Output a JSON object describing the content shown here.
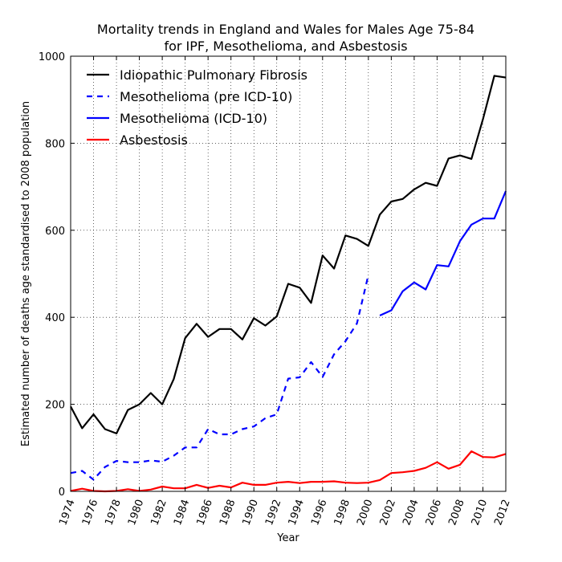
{
  "chart_data": {
    "type": "line",
    "title_line1": "Mortality trends in England and Wales for Males Age 75-84",
    "title_line2": "for IPF, Mesothelioma, and Asbestosis",
    "xlabel": "Year",
    "ylabel": "Estimated number of deaths age standardised to 2008 population",
    "xlim": [
      1974,
      2012
    ],
    "ylim": [
      0,
      1000
    ],
    "xticks": [
      "1974",
      "1976",
      "1978",
      "1980",
      "1982",
      "1984",
      "1986",
      "1988",
      "1990",
      "1992",
      "1994",
      "1996",
      "1998",
      "2000",
      "2002",
      "2004",
      "2006",
      "2008",
      "2010",
      "2012"
    ],
    "yticks": [
      "0",
      "200",
      "400",
      "600",
      "800",
      "1000"
    ],
    "grid": true,
    "legend_position": "upper-left",
    "series": [
      {
        "name": "Idiopathic Pulmonary Fibrosis",
        "color": "#000000",
        "dash": "solid",
        "x": [
          1974,
          1975,
          1976,
          1977,
          1978,
          1979,
          1980,
          1981,
          1982,
          1983,
          1984,
          1985,
          1986,
          1987,
          1988,
          1989,
          1990,
          1991,
          1992,
          1993,
          1994,
          1995,
          1996,
          1997,
          1998,
          1999,
          2000,
          2001,
          2002,
          2003,
          2004,
          2005,
          2006,
          2007,
          2008,
          2009,
          2010,
          2011,
          2012
        ],
        "y": [
          195,
          145,
          177,
          143,
          133,
          187,
          200,
          226,
          200,
          258,
          352,
          385,
          355,
          373,
          373,
          349,
          398,
          381,
          402,
          477,
          468,
          433,
          542,
          512,
          588,
          580,
          564,
          636,
          666,
          672,
          694,
          709,
          702,
          765,
          772,
          764,
          855,
          955,
          951
        ]
      },
      {
        "name": "Mesothelioma (pre ICD-10)",
        "color": "#0000ff",
        "dash": "dashed",
        "x": [
          1974,
          1975,
          1976,
          1977,
          1978,
          1979,
          1980,
          1981,
          1982,
          1983,
          1984,
          1985,
          1986,
          1987,
          1988,
          1989,
          1990,
          1991,
          1992,
          1993,
          1994,
          1995,
          1996,
          1997,
          1998,
          1999,
          2000
        ],
        "y": [
          42,
          47,
          27,
          56,
          70,
          67,
          67,
          71,
          68,
          82,
          101,
          101,
          143,
          131,
          131,
          143,
          149,
          168,
          177,
          259,
          262,
          297,
          263,
          315,
          345,
          386,
          497
        ]
      },
      {
        "name": "Mesothelioma (ICD-10)",
        "color": "#0000ff",
        "dash": "solid",
        "x": [
          2001,
          2002,
          2003,
          2004,
          2005,
          2006,
          2007,
          2008,
          2009,
          2010,
          2011,
          2012
        ],
        "y": [
          404,
          416,
          460,
          480,
          464,
          520,
          517,
          575,
          613,
          627,
          627,
          690
        ]
      },
      {
        "name": "Asbestosis",
        "color": "#ff0000",
        "dash": "solid",
        "x": [
          1974,
          1975,
          1976,
          1977,
          1978,
          1979,
          1980,
          1981,
          1982,
          1983,
          1984,
          1985,
          1986,
          1987,
          1988,
          1989,
          1990,
          1991,
          1992,
          1993,
          1994,
          1995,
          1996,
          1997,
          1998,
          1999,
          2000,
          2001,
          2002,
          2003,
          2004,
          2005,
          2006,
          2007,
          2008,
          2009,
          2010,
          2011,
          2012
        ],
        "y": [
          1,
          6,
          1,
          0,
          1,
          5,
          1,
          4,
          11,
          7,
          7,
          15,
          8,
          13,
          9,
          20,
          15,
          15,
          20,
          22,
          19,
          22,
          22,
          23,
          20,
          19,
          20,
          26,
          42,
          44,
          47,
          54,
          67,
          52,
          61,
          92,
          79,
          78,
          86
        ]
      }
    ]
  }
}
